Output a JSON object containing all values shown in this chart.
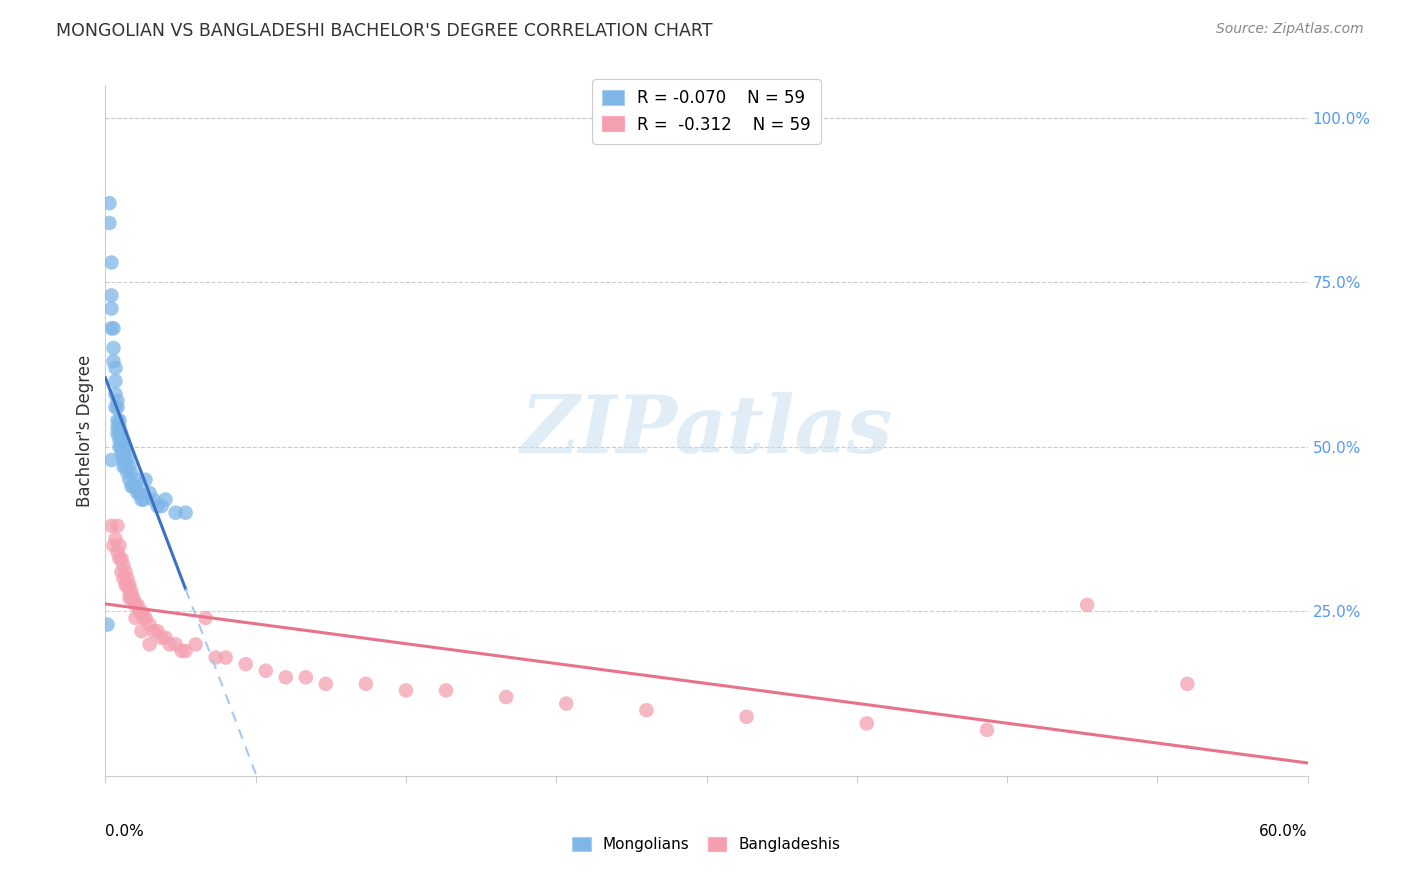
{
  "title": "MONGOLIAN VS BANGLADESHI BACHELOR'S DEGREE CORRELATION CHART",
  "source": "Source: ZipAtlas.com",
  "ylabel": "Bachelor's Degree",
  "right_ytick_labels": [
    "100.0%",
    "75.0%",
    "50.0%",
    "25.0%"
  ],
  "right_ytick_vals": [
    1.0,
    0.75,
    0.5,
    0.25
  ],
  "r_mongolian": -0.07,
  "n_mongolian": 59,
  "r_bangladeshi": -0.312,
  "n_bangladeshi": 59,
  "mongolian_color": "#7EB6E8",
  "bangladeshi_color": "#F4A0B0",
  "trend_mongolian_color": "#3A72C4",
  "trend_bangladeshi_color": "#E8728A",
  "trend_mongolian_ext_color": "#A8C8EE",
  "watermark_text": "ZIPatlas",
  "mongolian_x": [
    0.001,
    0.002,
    0.002,
    0.003,
    0.003,
    0.003,
    0.003,
    0.004,
    0.004,
    0.004,
    0.005,
    0.005,
    0.005,
    0.005,
    0.006,
    0.006,
    0.006,
    0.006,
    0.006,
    0.007,
    0.007,
    0.007,
    0.007,
    0.007,
    0.008,
    0.008,
    0.008,
    0.008,
    0.009,
    0.009,
    0.009,
    0.009,
    0.009,
    0.01,
    0.01,
    0.01,
    0.01,
    0.011,
    0.011,
    0.012,
    0.012,
    0.013,
    0.013,
    0.014,
    0.015,
    0.016,
    0.016,
    0.017,
    0.018,
    0.019,
    0.02,
    0.022,
    0.024,
    0.026,
    0.028,
    0.03,
    0.035,
    0.04,
    0.003
  ],
  "mongolian_y": [
    0.23,
    0.87,
    0.84,
    0.78,
    0.73,
    0.71,
    0.68,
    0.68,
    0.65,
    0.63,
    0.62,
    0.6,
    0.58,
    0.56,
    0.57,
    0.56,
    0.54,
    0.53,
    0.52,
    0.54,
    0.53,
    0.52,
    0.51,
    0.5,
    0.52,
    0.51,
    0.5,
    0.49,
    0.51,
    0.5,
    0.49,
    0.48,
    0.47,
    0.5,
    0.49,
    0.48,
    0.47,
    0.48,
    0.46,
    0.47,
    0.45,
    0.46,
    0.44,
    0.44,
    0.44,
    0.45,
    0.43,
    0.43,
    0.42,
    0.42,
    0.45,
    0.43,
    0.42,
    0.41,
    0.41,
    0.42,
    0.4,
    0.4,
    0.48
  ],
  "bangladeshi_x": [
    0.003,
    0.004,
    0.005,
    0.006,
    0.006,
    0.007,
    0.007,
    0.008,
    0.008,
    0.009,
    0.009,
    0.01,
    0.011,
    0.011,
    0.012,
    0.012,
    0.013,
    0.013,
    0.014,
    0.015,
    0.016,
    0.017,
    0.018,
    0.019,
    0.02,
    0.022,
    0.024,
    0.026,
    0.028,
    0.03,
    0.032,
    0.035,
    0.038,
    0.04,
    0.045,
    0.05,
    0.055,
    0.06,
    0.07,
    0.08,
    0.09,
    0.1,
    0.11,
    0.13,
    0.15,
    0.17,
    0.2,
    0.23,
    0.27,
    0.32,
    0.38,
    0.44,
    0.49,
    0.54,
    0.01,
    0.012,
    0.015,
    0.018,
    0.022
  ],
  "bangladeshi_y": [
    0.38,
    0.35,
    0.36,
    0.34,
    0.38,
    0.33,
    0.35,
    0.33,
    0.31,
    0.32,
    0.3,
    0.31,
    0.29,
    0.3,
    0.29,
    0.28,
    0.28,
    0.27,
    0.27,
    0.26,
    0.26,
    0.25,
    0.25,
    0.24,
    0.24,
    0.23,
    0.22,
    0.22,
    0.21,
    0.21,
    0.2,
    0.2,
    0.19,
    0.19,
    0.2,
    0.24,
    0.18,
    0.18,
    0.17,
    0.16,
    0.15,
    0.15,
    0.14,
    0.14,
    0.13,
    0.13,
    0.12,
    0.11,
    0.1,
    0.09,
    0.08,
    0.07,
    0.26,
    0.14,
    0.29,
    0.27,
    0.24,
    0.22,
    0.2
  ],
  "xlim": [
    0.0,
    0.6
  ],
  "ylim": [
    0.0,
    1.05
  ],
  "background_color": "#FFFFFF",
  "grid_color": "#CCCCCC"
}
